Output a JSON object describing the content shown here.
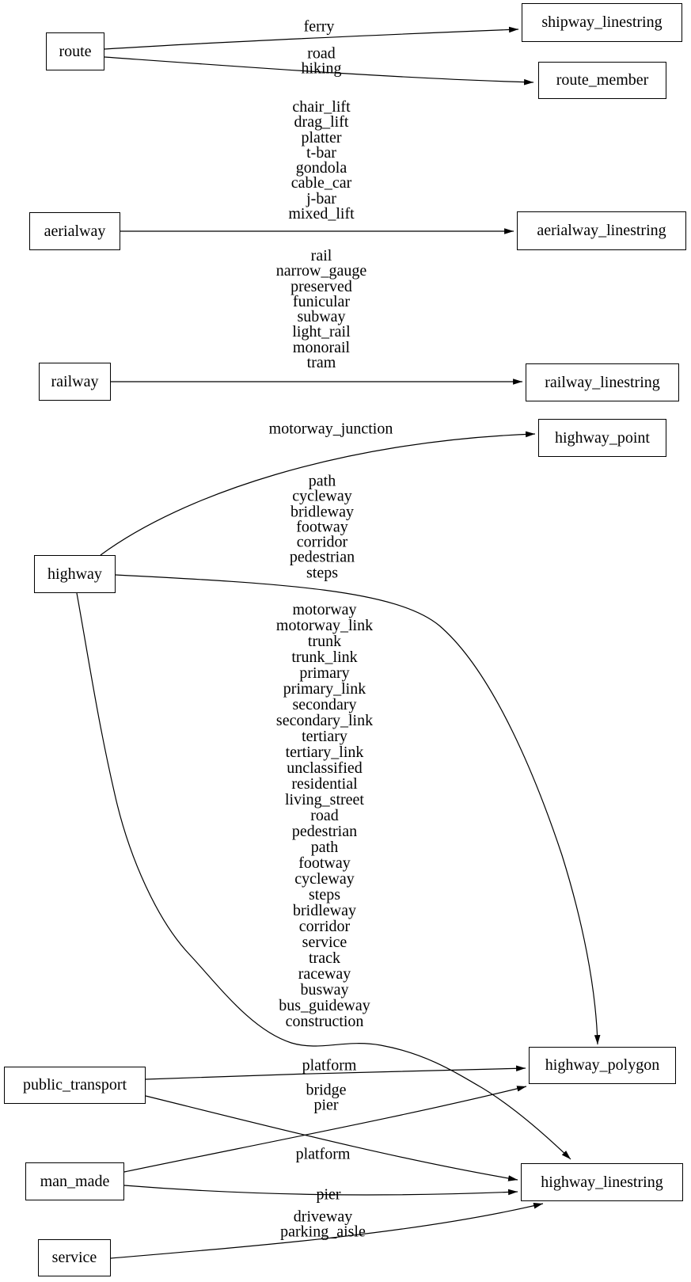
{
  "diagram": {
    "background": "#ffffff",
    "stroke_color": "#000000",
    "text_color": "#000000",
    "nodes": [
      {
        "id": "route",
        "label": "route"
      },
      {
        "id": "shipway_linestring",
        "label": "shipway_linestring"
      },
      {
        "id": "route_member",
        "label": "route_member"
      },
      {
        "id": "aerialway",
        "label": "aerialway"
      },
      {
        "id": "aerialway_linestring",
        "label": "aerialway_linestring"
      },
      {
        "id": "railway",
        "label": "railway"
      },
      {
        "id": "railway_linestring",
        "label": "railway_linestring"
      },
      {
        "id": "highway",
        "label": "highway"
      },
      {
        "id": "highway_point",
        "label": "highway_point"
      },
      {
        "id": "highway_polygon",
        "label": "highway_polygon"
      },
      {
        "id": "highway_linestring",
        "label": "highway_linestring"
      },
      {
        "id": "public_transport",
        "label": "public_transport"
      },
      {
        "id": "man_made",
        "label": "man_made"
      },
      {
        "id": "service",
        "label": "service"
      }
    ],
    "edges": [
      {
        "from": "route",
        "to": "shipway_linestring",
        "values": [
          "ferry"
        ]
      },
      {
        "from": "route",
        "to": "route_member",
        "values": [
          "road",
          "hiking"
        ]
      },
      {
        "from": "aerialway",
        "to": "aerialway_linestring",
        "values": [
          "chair_lift",
          "drag_lift",
          "platter",
          "t-bar",
          "gondola",
          "cable_car",
          "j-bar",
          "mixed_lift"
        ]
      },
      {
        "from": "railway",
        "to": "railway_linestring",
        "values": [
          "rail",
          "narrow_gauge",
          "preserved",
          "funicular",
          "subway",
          "light_rail",
          "monorail",
          "tram"
        ]
      },
      {
        "from": "highway",
        "to": "highway_point",
        "values": [
          "motorway_junction"
        ]
      },
      {
        "from": "highway",
        "to": "highway_polygon",
        "values": [
          "path",
          "cycleway",
          "bridleway",
          "footway",
          "corridor",
          "pedestrian",
          "steps"
        ]
      },
      {
        "from": "highway",
        "to": "highway_linestring",
        "values": [
          "motorway",
          "motorway_link",
          "trunk",
          "trunk_link",
          "primary",
          "primary_link",
          "secondary",
          "secondary_link",
          "tertiary",
          "tertiary_link",
          "unclassified",
          "residential",
          "living_street",
          "road",
          "pedestrian",
          "path",
          "footway",
          "cycleway",
          "steps",
          "bridleway",
          "corridor",
          "service",
          "track",
          "raceway",
          "busway",
          "bus_guideway",
          "construction"
        ]
      },
      {
        "from": "public_transport",
        "to": "highway_polygon",
        "values": [
          "platform"
        ]
      },
      {
        "from": "public_transport",
        "to": "highway_linestring",
        "values": [
          "platform"
        ]
      },
      {
        "from": "man_made",
        "to": "highway_polygon",
        "values": [
          "bridge",
          "pier"
        ]
      },
      {
        "from": "man_made",
        "to": "highway_linestring",
        "values": [
          "pier"
        ]
      },
      {
        "from": "service",
        "to": "highway_linestring",
        "values": [
          "driveway",
          "parking_aisle"
        ]
      }
    ]
  }
}
